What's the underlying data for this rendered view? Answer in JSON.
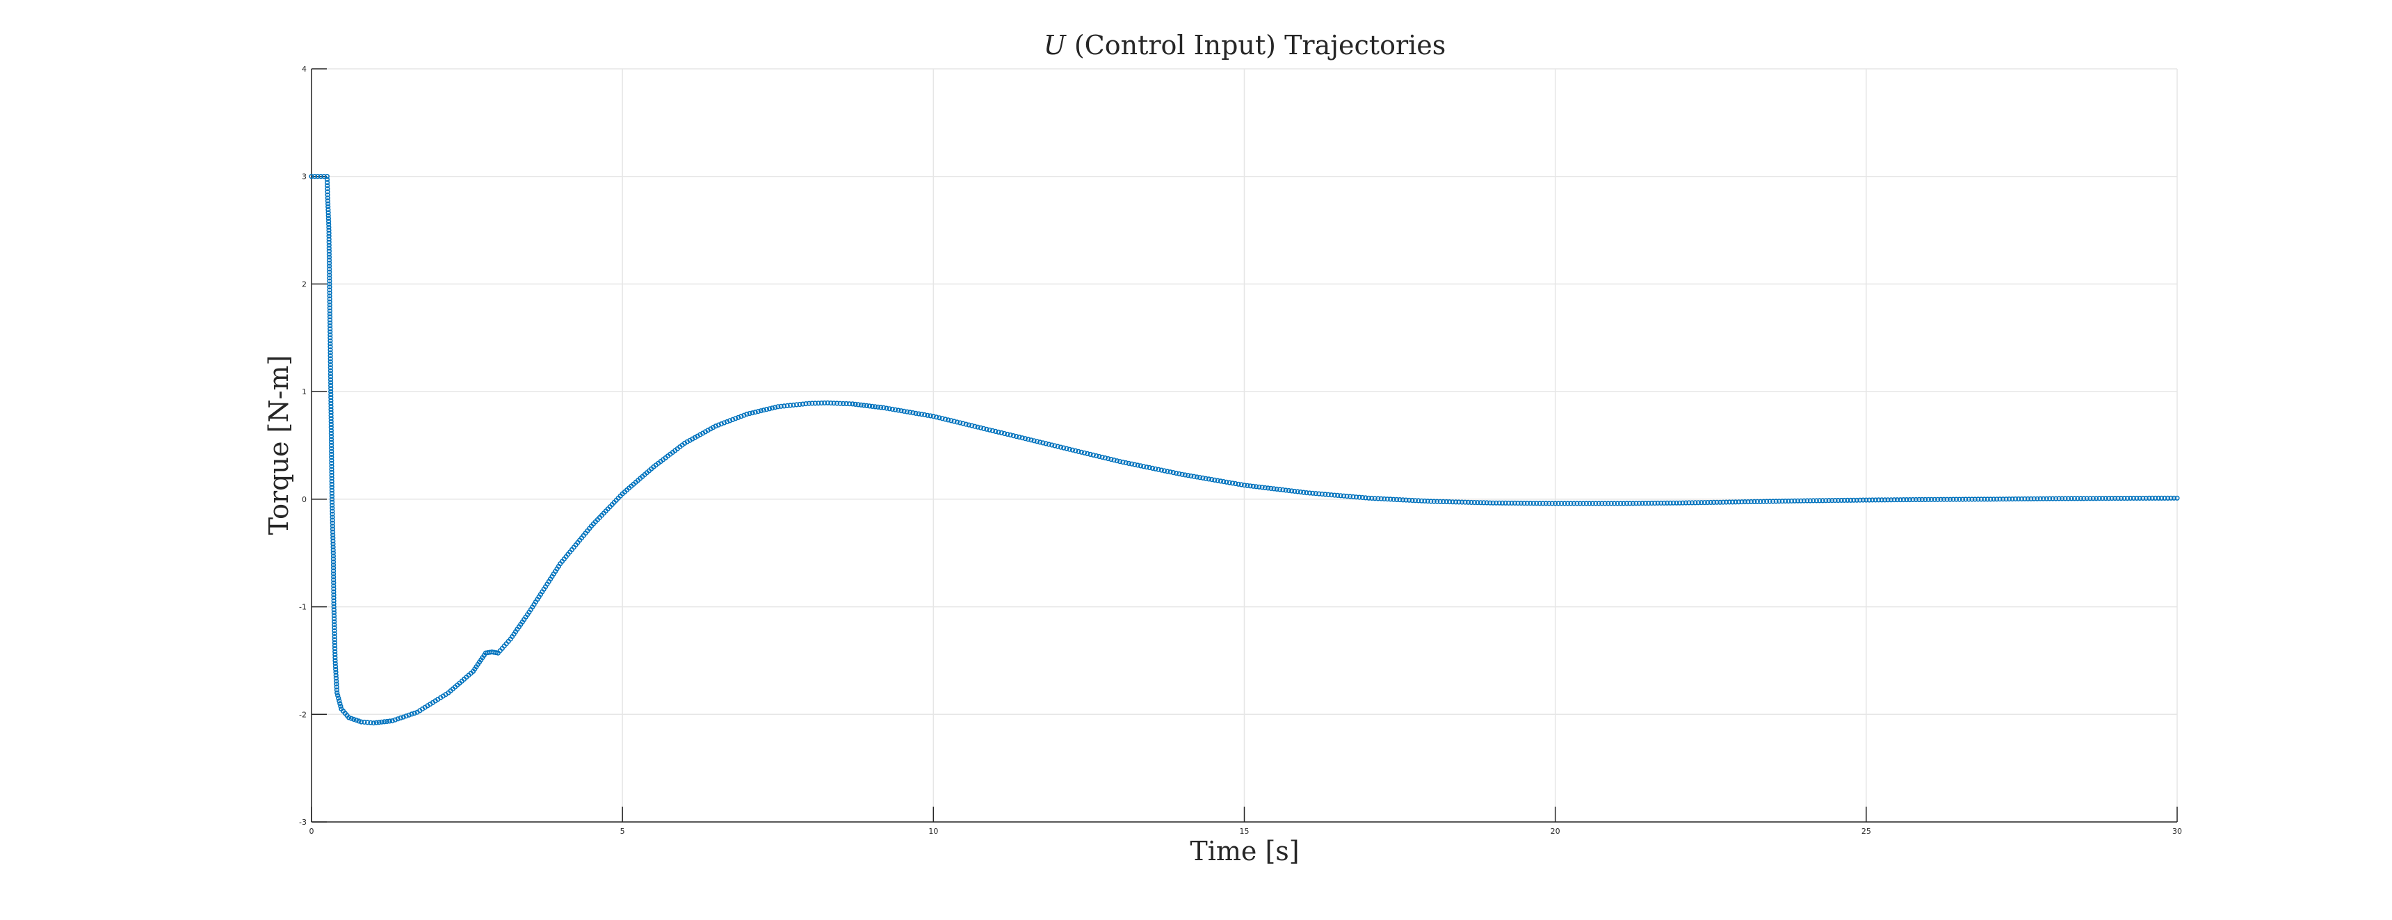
{
  "chart_data": {
    "type": "scatter",
    "title_var": "U",
    "title_rest": " (Control Input) Trajectories",
    "xlabel": "Time [s]",
    "ylabel": "Torque [N-m]",
    "xlim": [
      0,
      30
    ],
    "ylim": [
      -3,
      4
    ],
    "xticks": [
      0,
      5,
      10,
      15,
      20,
      25,
      30
    ],
    "yticks": [
      -3,
      -2,
      -1,
      0,
      1,
      2,
      3,
      4
    ],
    "grid": true,
    "marker_color": "#0072BD",
    "series": [
      {
        "points": [
          [
            0,
            3
          ],
          [
            0.25,
            3
          ],
          [
            0.26,
            2.8
          ],
          [
            0.28,
            2.5
          ],
          [
            0.29,
            2.0
          ],
          [
            0.3,
            1.5
          ],
          [
            0.31,
            1.0
          ],
          [
            0.32,
            0.5
          ],
          [
            0.33,
            0
          ],
          [
            0.35,
            -0.5
          ],
          [
            0.36,
            -1.0
          ],
          [
            0.38,
            -1.5
          ],
          [
            0.41,
            -1.8
          ],
          [
            0.48,
            -1.95
          ],
          [
            0.6,
            -2.03
          ],
          [
            0.8,
            -2.07
          ],
          [
            1.0,
            -2.08
          ],
          [
            1.3,
            -2.06
          ],
          [
            1.7,
            -1.98
          ],
          [
            2.2,
            -1.8
          ],
          [
            2.6,
            -1.6
          ],
          [
            2.8,
            -1.43
          ],
          [
            2.9,
            -1.42
          ],
          [
            3.0,
            -1.43
          ],
          [
            3.2,
            -1.3
          ],
          [
            3.5,
            -1.05
          ],
          [
            4.0,
            -0.6
          ],
          [
            4.5,
            -0.25
          ],
          [
            5.0,
            0.05
          ],
          [
            5.5,
            0.3
          ],
          [
            6.0,
            0.52
          ],
          [
            6.5,
            0.68
          ],
          [
            7.0,
            0.79
          ],
          [
            7.5,
            0.86
          ],
          [
            8.0,
            0.89
          ],
          [
            8.3,
            0.895
          ],
          [
            8.7,
            0.885
          ],
          [
            9.2,
            0.85
          ],
          [
            10.0,
            0.77
          ],
          [
            11.0,
            0.63
          ],
          [
            12.0,
            0.49
          ],
          [
            13.0,
            0.35
          ],
          [
            14.0,
            0.23
          ],
          [
            15.0,
            0.13
          ],
          [
            16.0,
            0.06
          ],
          [
            17.0,
            0.01
          ],
          [
            18.0,
            -0.02
          ],
          [
            19.0,
            -0.035
          ],
          [
            20.0,
            -0.04
          ],
          [
            21.0,
            -0.04
          ],
          [
            22.0,
            -0.035
          ],
          [
            23.0,
            -0.025
          ],
          [
            24.0,
            -0.015
          ],
          [
            25.0,
            -0.008
          ],
          [
            26.0,
            -0.003
          ],
          [
            27.0,
            0.0
          ],
          [
            28.0,
            0.005
          ],
          [
            29.0,
            0.008
          ],
          [
            30.0,
            0.01
          ]
        ]
      }
    ]
  }
}
